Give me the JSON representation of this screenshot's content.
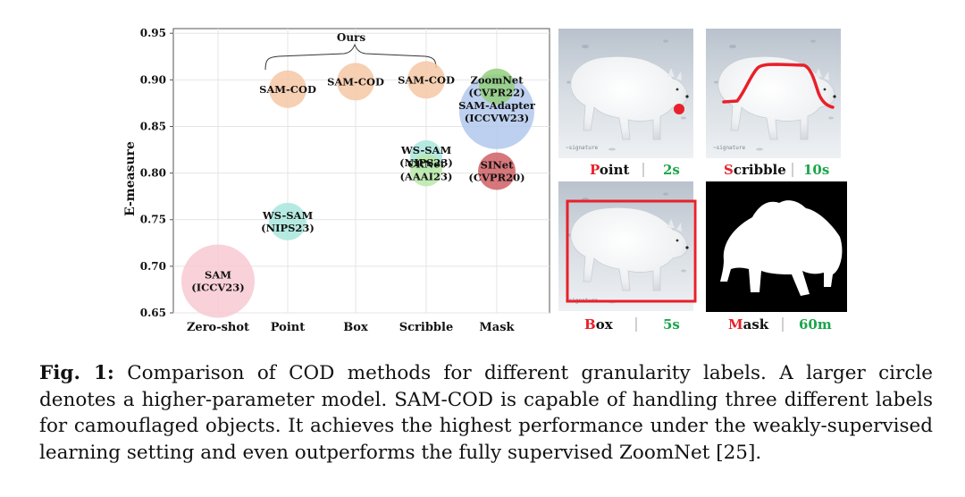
{
  "chart_data": {
    "type": "scatter",
    "ylabel": "E-measure",
    "xlabel": "",
    "categories": [
      "Zero-shot",
      "Point",
      "Box",
      "Scribble",
      "Mask"
    ],
    "yticks": [
      0.65,
      0.7,
      0.75,
      0.8,
      0.85,
      0.9,
      0.95
    ],
    "ylim": [
      0.65,
      0.955
    ],
    "grid": true,
    "group_label": "Ours",
    "points": [
      {
        "label": "SAM\n(ICCV23)",
        "category": "Zero-shot",
        "y": 0.684,
        "size": 41,
        "color": "#f7c9d2"
      },
      {
        "label": "WS-SAM\n(NIPS23)",
        "category": "Point",
        "y": 0.748,
        "size": 21,
        "color": "#a8e6dd"
      },
      {
        "label": "SAM-COD",
        "category": "Point",
        "y": 0.89,
        "size": 21,
        "color": "#f6c7a4"
      },
      {
        "label": "SAM-COD",
        "category": "Box",
        "y": 0.898,
        "size": 21,
        "color": "#f6c7a4"
      },
      {
        "label": "SAM-COD",
        "category": "Scribble",
        "y": 0.9,
        "size": 21,
        "color": "#f6c7a4"
      },
      {
        "label": "WS-SAM\n(NIPS23)",
        "category": "Scribble",
        "y": 0.818,
        "size": 18,
        "color": "#a8e6dd"
      },
      {
        "label": "CRNet\n(AAAI23)",
        "category": "Scribble",
        "y": 0.803,
        "size": 18,
        "color": "#b9e9a8"
      },
      {
        "label": "SAM-Adapter\n(ICCVW23)",
        "category": "Mask",
        "y": 0.866,
        "size": 42,
        "color": "#b3c8ec"
      },
      {
        "label": "ZoomNet\n(CVPR22)",
        "category": "Mask",
        "y": 0.893,
        "size": 20,
        "color": "#93cf7c"
      },
      {
        "label": "SINet\n(CVPR20)",
        "category": "Mask",
        "y": 0.802,
        "size": 21,
        "color": "#cf5f64"
      }
    ]
  },
  "panels": [
    {
      "initial": "P",
      "rest": "oint",
      "time": "2s"
    },
    {
      "initial": "S",
      "rest": "cribble",
      "time": "10s"
    },
    {
      "initial": "B",
      "rest": "ox",
      "time": "5s"
    },
    {
      "initial": "M",
      "rest": "ask",
      "time": "60m"
    }
  ],
  "colors": {
    "accent_red": "#e8202a",
    "time_green": "#1aa64b",
    "annotation_red": "#e8202a"
  },
  "caption": {
    "label": "Fig. 1:",
    "text": "Comparison of COD methods for different granularity labels. A larger circle denotes a higher-parameter model. SAM-COD is capable of handling three different labels for camouflaged objects. It achieves the highest performance under the weakly-supervised learning setting and even outperforms the fully supervised ZoomNet [25]."
  }
}
